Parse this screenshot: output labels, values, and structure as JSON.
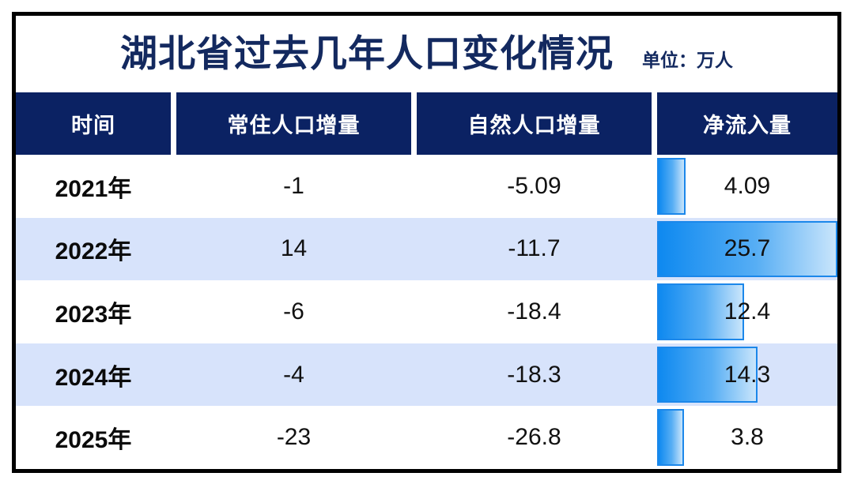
{
  "title": "湖北省过去几年人口变化情况",
  "unit_label": "单位：万人",
  "columns": {
    "time": "时间",
    "resident": "常住人口增量",
    "natural": "自然人口增量",
    "net": "净流入量"
  },
  "rows": [
    {
      "year": "2021年",
      "resident": "-1",
      "natural": "-5.09",
      "net": "4.09",
      "net_value": 4.09
    },
    {
      "year": "2022年",
      "resident": "14",
      "natural": "-11.7",
      "net": "25.7",
      "net_value": 25.7
    },
    {
      "year": "2023年",
      "resident": "-6",
      "natural": "-18.4",
      "net": "12.4",
      "net_value": 12.4
    },
    {
      "year": "2024年",
      "resident": "-4",
      "natural": "-18.3",
      "net": "14.3",
      "net_value": 14.3
    },
    {
      "year": "2025年",
      "resident": "-23",
      "natural": "-26.8",
      "net": "3.8",
      "net_value": 3.8
    }
  ],
  "chart_data": {
    "type": "table",
    "title": "湖北省过去几年人口变化情况",
    "unit": "万人",
    "columns": [
      "时间",
      "常住人口增量",
      "自然人口增量",
      "净流入量"
    ],
    "categories": [
      "2021年",
      "2022年",
      "2023年",
      "2024年",
      "2025年"
    ],
    "series": [
      {
        "name": "常住人口增量",
        "values": [
          -1,
          14,
          -6,
          -4,
          -23
        ]
      },
      {
        "name": "自然人口增量",
        "values": [
          -5.09,
          -11.7,
          -18.4,
          -18.3,
          -26.8
        ]
      },
      {
        "name": "净流入量",
        "values": [
          4.09,
          25.7,
          12.4,
          14.3,
          3.8
        ]
      }
    ],
    "bar_column": "净流入量",
    "bar_max": 25.7,
    "layout": "embedded horizontal bars in last column, bar length proportional to value"
  },
  "colors": {
    "header_bg": "#0b2263",
    "title_text": "#13295f",
    "row_alt_bg": "#d7e3fb",
    "bar_border": "#1b87ea",
    "bar_gradient_start": "#0e89f0",
    "bar_gradient_end": "#c9e5fb",
    "outer_border": "#000000"
  }
}
